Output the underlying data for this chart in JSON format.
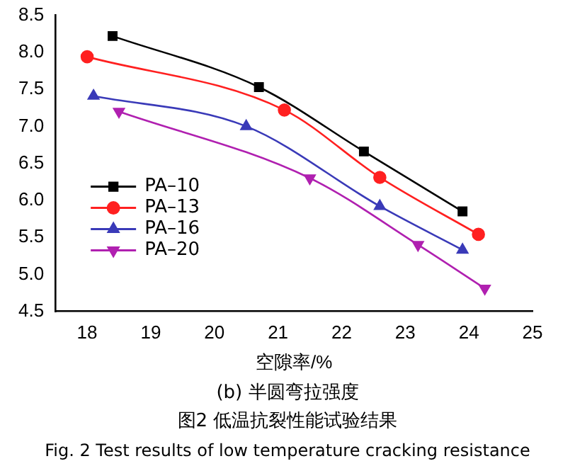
{
  "chart_data": {
    "type": "line",
    "xlabel": "空隙率/%",
    "xlim": [
      17.5,
      25
    ],
    "xticks": [
      18,
      19,
      20,
      21,
      22,
      23,
      24,
      25
    ],
    "ylim": [
      4.5,
      8.5
    ],
    "yticks": [
      {
        "value": 4.5,
        "label": "4.5"
      },
      {
        "value": 5,
        "label": "5.0"
      },
      {
        "value": 5.5,
        "label": "5.5"
      },
      {
        "value": 6,
        "label": "6.0"
      },
      {
        "value": 6.5,
        "label": "6.5"
      },
      {
        "value": 7,
        "label": "7.0"
      },
      {
        "value": 7.5,
        "label": "7.5"
      },
      {
        "value": 8,
        "label": "8.0"
      },
      {
        "value": 8.5,
        "label": "8.5"
      }
    ],
    "grid": false,
    "legend": "bottom left",
    "line_style": "solid",
    "series": [
      {
        "name": "PA–10",
        "color": "#000000",
        "marker": "square",
        "x": [
          18.4,
          20.7,
          22.35,
          23.9
        ],
        "values": [
          8.22,
          7.53,
          6.66,
          5.85
        ]
      },
      {
        "name": "PA–13",
        "color": "#ff2020",
        "marker": "circle",
        "x": [
          18.0,
          21.1,
          22.6,
          24.15
        ],
        "values": [
          7.94,
          7.22,
          6.31,
          5.54
        ]
      },
      {
        "name": "PA–16",
        "color": "#3a3ab8",
        "marker": "triangle",
        "x": [
          18.1,
          20.5,
          22.6,
          23.9
        ],
        "values": [
          7.41,
          7.0,
          5.92,
          5.33
        ]
      },
      {
        "name": "PA–20",
        "color": "#b020b0",
        "marker": "triangle-down",
        "x": [
          18.5,
          21.5,
          23.2,
          24.25
        ],
        "values": [
          7.2,
          6.3,
          5.4,
          4.81
        ]
      }
    ],
    "annotations": [
      "(b) 半圆弯拉强度",
      "图2 低温抗裂性能试验结果",
      "Fig. 2 Test results of low temperature cracking resistance"
    ]
  }
}
